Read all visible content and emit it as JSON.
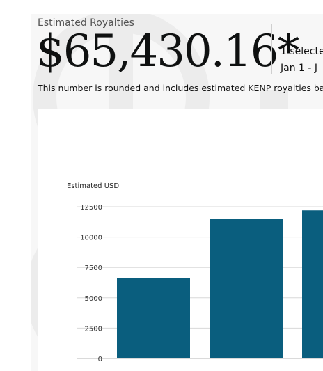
{
  "summary": {
    "label": "Estimated Royalties",
    "amount": "$65,430.16*",
    "selection": "1 selecte",
    "date_range": "Jan 1 - J",
    "note": "This number is rounded and includes estimated KENP royalties ba"
  },
  "colors": {
    "bar": "#0a5e7e",
    "grid": "#d8d8d8",
    "axis": "#b5b5b5"
  },
  "chart_data": {
    "type": "bar",
    "ylabel": "Estimated USD",
    "ylim": [
      0,
      12500
    ],
    "yticks": [
      0,
      2500,
      5000,
      7500,
      10000,
      12500
    ],
    "categories": [
      "",
      "",
      ""
    ],
    "values": [
      6600,
      11500,
      12200
    ]
  }
}
